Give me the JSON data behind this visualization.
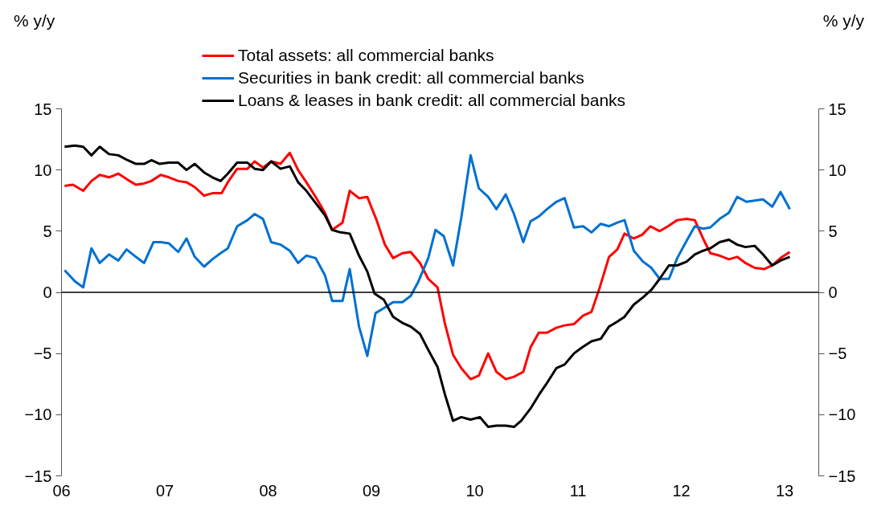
{
  "chart_data": {
    "type": "line",
    "ylabel": "% y/y",
    "y2label": "% y/y",
    "xlim": [
      2006,
      2013.33
    ],
    "xticks": [
      {
        "value": 2006,
        "label": "06"
      },
      {
        "value": 2007,
        "label": "07"
      },
      {
        "value": 2008,
        "label": "08"
      },
      {
        "value": 2009,
        "label": "09"
      },
      {
        "value": 2010,
        "label": "10"
      },
      {
        "value": 2011,
        "label": "11"
      },
      {
        "value": 2012,
        "label": "12"
      },
      {
        "value": 2013,
        "label": "13"
      }
    ],
    "ylim": [
      -15,
      15
    ],
    "yticks": [
      -15,
      -10,
      -5,
      0,
      5,
      10,
      15
    ],
    "y2lim": [
      -15,
      15
    ],
    "y2ticks": [
      -15,
      -10,
      -5,
      0,
      5,
      10,
      15
    ],
    "grid": false,
    "legend": "top",
    "line_style": "solid",
    "marker": "none",
    "ref_lines": [
      {
        "axis": "y",
        "value": 0,
        "color": "#000000"
      }
    ],
    "series": [
      {
        "name": "Total assets: all commercial banks",
        "color": "#ff0000",
        "x": [
          2006.03,
          2006.11,
          2006.21,
          2006.29,
          2006.37,
          2006.46,
          2006.55,
          2006.64,
          2006.72,
          2006.8,
          2006.87,
          2006.96,
          2007.04,
          2007.13,
          2007.21,
          2007.29,
          2007.38,
          2007.46,
          2007.55,
          2007.61,
          2007.7,
          2007.8,
          2007.87,
          2007.95,
          2008.03,
          2008.12,
          2008.21,
          2008.29,
          2008.37,
          2008.46,
          2008.55,
          2008.62,
          2008.72,
          2008.79,
          2008.88,
          2008.96,
          2009.05,
          2009.13,
          2009.21,
          2009.3,
          2009.38,
          2009.47,
          2009.55,
          2009.64,
          2009.71,
          2009.79,
          2009.87,
          2009.96,
          2010.04,
          2010.13,
          2010.21,
          2010.3,
          2010.38,
          2010.47,
          2010.54,
          2010.62,
          2010.7,
          2010.79,
          2010.87,
          2010.96,
          2011.05,
          2011.13,
          2011.21,
          2011.3,
          2011.38,
          2011.45,
          2011.54,
          2011.62,
          2011.7,
          2011.79,
          2011.87,
          2011.96,
          2012.05,
          2012.13,
          2012.21,
          2012.28,
          2012.37,
          2012.46,
          2012.54,
          2012.62,
          2012.71,
          2012.8,
          2012.88,
          2012.96,
          2013.05
        ],
        "values": [
          8.7,
          8.8,
          8.3,
          9.1,
          9.6,
          9.4,
          9.7,
          9.2,
          8.8,
          8.9,
          9.1,
          9.6,
          9.4,
          9.1,
          9.0,
          8.6,
          7.9,
          8.1,
          8.1,
          9.0,
          10.1,
          10.1,
          10.7,
          10.2,
          10.7,
          10.5,
          11.4,
          10.0,
          9.0,
          7.8,
          6.5,
          5.1,
          5.7,
          8.3,
          7.7,
          7.8,
          5.9,
          3.9,
          2.8,
          3.2,
          3.3,
          2.4,
          1.1,
          0.4,
          -2.5,
          -5.1,
          -6.2,
          -7.1,
          -6.8,
          -5.0,
          -6.5,
          -7.1,
          -6.9,
          -6.5,
          -4.5,
          -3.3,
          -3.3,
          -2.9,
          -2.7,
          -2.6,
          -1.9,
          -1.6,
          0.4,
          2.9,
          3.5,
          4.8,
          4.4,
          4.7,
          5.4,
          5.0,
          5.4,
          5.9,
          6.0,
          5.9,
          4.4,
          3.2,
          3.0,
          2.7,
          2.9,
          2.4,
          2.0,
          1.9,
          2.2,
          2.8,
          3.3
        ]
      },
      {
        "name": "Securities in bank credit: all commercial banks",
        "color": "#0070d0",
        "x": [
          2006.03,
          2006.13,
          2006.21,
          2006.29,
          2006.37,
          2006.46,
          2006.55,
          2006.63,
          2006.72,
          2006.8,
          2006.89,
          2006.96,
          2007.04,
          2007.13,
          2007.21,
          2007.29,
          2007.38,
          2007.46,
          2007.54,
          2007.61,
          2007.7,
          2007.8,
          2007.87,
          2007.95,
          2008.03,
          2008.12,
          2008.21,
          2008.29,
          2008.37,
          2008.46,
          2008.55,
          2008.62,
          2008.72,
          2008.79,
          2008.88,
          2008.96,
          2009.04,
          2009.12,
          2009.21,
          2009.3,
          2009.38,
          2009.45,
          2009.55,
          2009.62,
          2009.7,
          2009.79,
          2009.87,
          2009.96,
          2010.04,
          2010.13,
          2010.21,
          2010.3,
          2010.38,
          2010.47,
          2010.54,
          2010.62,
          2010.7,
          2010.79,
          2010.87,
          2010.96,
          2011.05,
          2011.13,
          2011.22,
          2011.3,
          2011.38,
          2011.45,
          2011.54,
          2011.63,
          2011.71,
          2011.79,
          2011.88,
          2011.96,
          2012.05,
          2012.13,
          2012.21,
          2012.28,
          2012.37,
          2012.46,
          2012.54,
          2012.63,
          2012.71,
          2012.79,
          2012.88,
          2012.96,
          2013.05
        ],
        "values": [
          1.8,
          0.9,
          0.4,
          3.6,
          2.4,
          3.1,
          2.6,
          3.5,
          2.9,
          2.4,
          4.1,
          4.1,
          4.0,
          3.3,
          4.4,
          2.9,
          2.1,
          2.7,
          3.2,
          3.6,
          5.4,
          5.9,
          6.4,
          6.0,
          4.1,
          3.9,
          3.4,
          2.4,
          3.0,
          2.8,
          1.4,
          -0.7,
          -0.7,
          1.9,
          -2.8,
          -5.2,
          -1.7,
          -1.3,
          -0.8,
          -0.8,
          -0.3,
          0.8,
          2.8,
          5.1,
          4.6,
          2.2,
          6.1,
          11.2,
          8.5,
          7.8,
          6.8,
          8.0,
          6.4,
          4.1,
          5.8,
          6.2,
          6.8,
          7.4,
          7.7,
          5.3,
          5.4,
          4.9,
          5.6,
          5.4,
          5.7,
          5.9,
          3.4,
          2.5,
          2.0,
          1.1,
          1.1,
          2.8,
          4.2,
          5.4,
          5.2,
          5.3,
          6.0,
          6.5,
          7.8,
          7.4,
          7.5,
          7.6,
          7.0,
          8.2,
          6.8
        ]
      },
      {
        "name": "Loans & leases in bank credit: all commercial banks",
        "color": "#000000",
        "x": [
          2006.03,
          2006.13,
          2006.21,
          2006.29,
          2006.37,
          2006.46,
          2006.55,
          2006.64,
          2006.72,
          2006.8,
          2006.87,
          2006.95,
          2007.04,
          2007.13,
          2007.21,
          2007.29,
          2007.38,
          2007.46,
          2007.54,
          2007.61,
          2007.7,
          2007.8,
          2007.87,
          2007.95,
          2008.03,
          2008.12,
          2008.21,
          2008.29,
          2008.37,
          2008.46,
          2008.55,
          2008.62,
          2008.7,
          2008.79,
          2008.88,
          2008.96,
          2009.03,
          2009.12,
          2009.21,
          2009.3,
          2009.38,
          2009.47,
          2009.55,
          2009.64,
          2009.71,
          2009.79,
          2009.87,
          2009.96,
          2010.05,
          2010.13,
          2010.21,
          2010.3,
          2010.38,
          2010.45,
          2010.54,
          2010.62,
          2010.7,
          2010.79,
          2010.87,
          2010.96,
          2011.04,
          2011.13,
          2011.22,
          2011.3,
          2011.38,
          2011.45,
          2011.54,
          2011.63,
          2011.71,
          2011.79,
          2011.88,
          2011.96,
          2012.05,
          2012.13,
          2012.21,
          2012.28,
          2012.37,
          2012.46,
          2012.54,
          2012.62,
          2012.71,
          2012.79,
          2012.88,
          2012.96,
          2013.05
        ],
        "values": [
          11.9,
          12.0,
          11.9,
          11.2,
          11.9,
          11.3,
          11.2,
          10.8,
          10.5,
          10.5,
          10.8,
          10.5,
          10.6,
          10.6,
          10.0,
          10.5,
          9.8,
          9.4,
          9.1,
          9.7,
          10.6,
          10.6,
          10.1,
          10.0,
          10.7,
          10.1,
          10.3,
          9.0,
          8.3,
          7.3,
          6.3,
          5.1,
          4.9,
          4.8,
          3.0,
          1.7,
          -0.1,
          -0.6,
          -2.0,
          -2.5,
          -2.8,
          -3.4,
          -4.7,
          -6.1,
          -8.3,
          -10.5,
          -10.2,
          -10.4,
          -10.2,
          -11.0,
          -10.9,
          -10.9,
          -11.0,
          -10.5,
          -9.5,
          -8.4,
          -7.4,
          -6.2,
          -5.9,
          -5.0,
          -4.5,
          -4.0,
          -3.8,
          -2.8,
          -2.4,
          -2.0,
          -1.0,
          -0.4,
          0.2,
          1.1,
          2.2,
          2.2,
          2.5,
          3.1,
          3.4,
          3.6,
          4.1,
          4.3,
          3.9,
          3.7,
          3.8,
          3.1,
          2.2,
          2.6,
          2.9
        ]
      }
    ]
  }
}
